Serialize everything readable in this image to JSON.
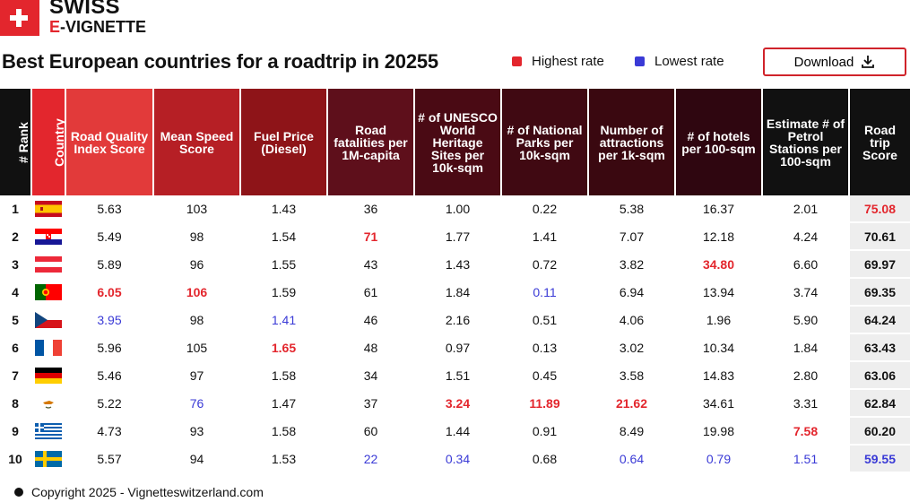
{
  "brand": {
    "line1": "SWISS",
    "line2_prefix": "E",
    "line2_rest": "-VIGNETTE"
  },
  "title": "Best European countries for a roadtrip in 20255",
  "legend": {
    "highest": "Highest rate",
    "lowest": "Lowest rate",
    "highest_color": "#e3262d",
    "lowest_color": "#3a3ad6"
  },
  "download_label": "Download",
  "headers": [
    "# Rank",
    "Country",
    "Road Quality Index Score",
    "Mean Speed Score",
    "Fuel Price (Diesel)",
    "Road fatalities per 1M-capita",
    "# of UNESCO World Heritage Sites per 10k-sqm",
    "# of National Parks per 10k-sqm",
    "Number of attractions per 1k-sqm",
    "# of hotels per 100-sqm",
    "Estimate # of Petrol Stations per 100-sqm",
    "Road trip Score"
  ],
  "header_colors": [
    "#111111",
    "#e3262d",
    "#e23a3a",
    "#b61f25",
    "#8e1418",
    "#5e0f1b",
    "#4a0a14",
    "#400912",
    "#3a0810",
    "#2f0610",
    "#111111",
    "#111111"
  ],
  "rows": [
    {
      "rank": "1",
      "flag": "es",
      "values": [
        "5.63",
        "103",
        "1.43",
        "36",
        "1.00",
        "0.22",
        "5.38",
        "16.37",
        "2.01",
        "75.08"
      ],
      "styles": [
        "",
        "",
        "",
        "",
        "",
        "",
        "",
        "",
        "",
        "hi"
      ]
    },
    {
      "rank": "2",
      "flag": "hr",
      "values": [
        "5.49",
        "98",
        "1.54",
        "71",
        "1.77",
        "1.41",
        "7.07",
        "12.18",
        "4.24",
        "70.61"
      ],
      "styles": [
        "",
        "",
        "",
        "hi",
        "",
        "",
        "",
        "",
        "",
        ""
      ]
    },
    {
      "rank": "3",
      "flag": "at",
      "values": [
        "5.89",
        "96",
        "1.55",
        "43",
        "1.43",
        "0.72",
        "3.82",
        "34.80",
        "6.60",
        "69.97"
      ],
      "styles": [
        "",
        "",
        "",
        "",
        "",
        "",
        "",
        "hi",
        "",
        ""
      ]
    },
    {
      "rank": "4",
      "flag": "pt",
      "values": [
        "6.05",
        "106",
        "1.59",
        "61",
        "1.84",
        "0.11",
        "6.94",
        "13.94",
        "3.74",
        "69.35"
      ],
      "styles": [
        "hi",
        "hi",
        "",
        "",
        "",
        "lo",
        "",
        "",
        "",
        ""
      ]
    },
    {
      "rank": "5",
      "flag": "cz",
      "values": [
        "3.95",
        "98",
        "1.41",
        "46",
        "2.16",
        "0.51",
        "4.06",
        "1.96",
        "5.90",
        "64.24"
      ],
      "styles": [
        "lo",
        "",
        "lo",
        "",
        "",
        "",
        "",
        "",
        "",
        ""
      ]
    },
    {
      "rank": "6",
      "flag": "fr",
      "values": [
        "5.96",
        "105",
        "1.65",
        "48",
        "0.97",
        "0.13",
        "3.02",
        "10.34",
        "1.84",
        "63.43"
      ],
      "styles": [
        "",
        "",
        "hi",
        "",
        "",
        "",
        "",
        "",
        "",
        ""
      ]
    },
    {
      "rank": "7",
      "flag": "de",
      "values": [
        "5.46",
        "97",
        "1.58",
        "34",
        "1.51",
        "0.45",
        "3.58",
        "14.83",
        "2.80",
        "63.06"
      ],
      "styles": [
        "",
        "",
        "",
        "",
        "",
        "",
        "",
        "",
        "",
        ""
      ]
    },
    {
      "rank": "8",
      "flag": "cy",
      "values": [
        "5.22",
        "76",
        "1.47",
        "37",
        "3.24",
        "11.89",
        "21.62",
        "34.61",
        "3.31",
        "62.84"
      ],
      "styles": [
        "",
        "lo",
        "",
        "",
        "hi",
        "hi",
        "hi",
        "",
        "",
        ""
      ]
    },
    {
      "rank": "9",
      "flag": "gr",
      "values": [
        "4.73",
        "93",
        "1.58",
        "60",
        "1.44",
        "0.91",
        "8.49",
        "19.98",
        "7.58",
        "60.20"
      ],
      "styles": [
        "",
        "",
        "",
        "",
        "",
        "",
        "",
        "",
        "hi",
        ""
      ]
    },
    {
      "rank": "10",
      "flag": "se",
      "values": [
        "5.57",
        "94",
        "1.53",
        "22",
        "0.34",
        "0.68",
        "0.64",
        "0.79",
        "1.51",
        "59.55"
      ],
      "styles": [
        "",
        "",
        "",
        "lo",
        "lo",
        "",
        "lo",
        "lo",
        "lo",
        "lo"
      ]
    }
  ],
  "footer": "Copyright 2025 - Vignetteswitzerland.com"
}
